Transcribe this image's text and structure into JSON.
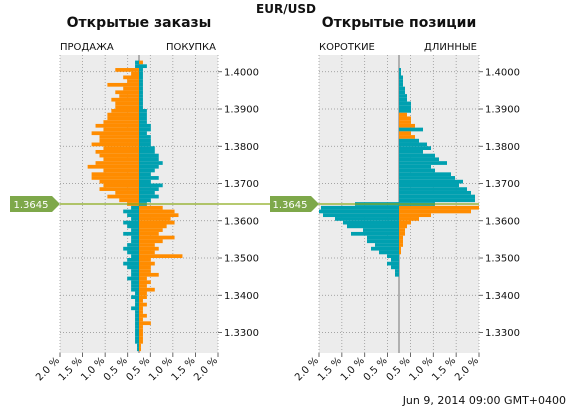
{
  "chart_data": {
    "type": "bar",
    "pair": "EUR/USD",
    "timestamp": "Jun 9, 2014 09:00 GMT+0400",
    "current_price": 1.3645,
    "current_price_label": "1.3645",
    "price_range": [
      1.3245,
      1.4045
    ],
    "price_ticks": [
      "1.4000",
      "1.3900",
      "1.3800",
      "1.3700",
      "1.3600",
      "1.3500",
      "1.3400",
      "1.3300"
    ],
    "x_ticks": [
      "2.0 %",
      "1.5 %",
      "1.0 %",
      "0.5 %",
      "0.5 %",
      "1.0 %",
      "1.5 %",
      "2.0 %"
    ],
    "xlim": [
      -2.0,
      2.0
    ],
    "grid": true,
    "colors": {
      "orange": "#ff8c00",
      "teal": "#00a0b0",
      "price_line": "#8aaa1a",
      "badge": "#7ea84a",
      "panel_bg": "#ececec"
    },
    "price_levels": [
      1.4025,
      1.4015,
      1.4005,
      1.3995,
      1.3985,
      1.3975,
      1.3965,
      1.3955,
      1.3945,
      1.3935,
      1.3925,
      1.3915,
      1.3905,
      1.3895,
      1.3885,
      1.3875,
      1.3865,
      1.3855,
      1.3845,
      1.3835,
      1.3825,
      1.3815,
      1.3805,
      1.3795,
      1.3785,
      1.3775,
      1.3765,
      1.3755,
      1.3745,
      1.3735,
      1.3725,
      1.3715,
      1.3705,
      1.3695,
      1.3685,
      1.3675,
      1.3665,
      1.3655,
      1.3645,
      1.3635,
      1.3625,
      1.3615,
      1.3605,
      1.3595,
      1.3585,
      1.3575,
      1.3565,
      1.3555,
      1.3545,
      1.3535,
      1.3525,
      1.3515,
      1.3505,
      1.3495,
      1.3485,
      1.3475,
      1.3465,
      1.3455,
      1.3445,
      1.3435,
      1.3425,
      1.3415,
      1.3405,
      1.3395,
      1.3385,
      1.3375,
      1.3365,
      1.3355,
      1.3345,
      1.3335,
      1.3325,
      1.3315,
      1.3305,
      1.3295,
      1.3285,
      1.3275,
      1.3265,
      1.3255
    ],
    "panels": [
      {
        "title": "Открытые заказы",
        "left_label": "ПРОДАЖА",
        "right_label": "ПОКУПКА",
        "left_values": [
          0.1,
          0.1,
          0.6,
          0.2,
          0.4,
          0.3,
          0.8,
          0.4,
          0.6,
          0.5,
          0.7,
          0.6,
          0.6,
          0.7,
          0.8,
          0.8,
          0.9,
          1.1,
          0.9,
          1.2,
          1.0,
          1.0,
          1.2,
          0.9,
          1.1,
          1.0,
          0.9,
          1.1,
          1.3,
          0.9,
          1.2,
          1.2,
          1.0,
          0.9,
          1.0,
          0.6,
          0.8,
          0.5,
          0.3,
          0.2,
          0.4,
          0.3,
          0.2,
          0.4,
          0.3,
          0.2,
          0.4,
          0.2,
          0.2,
          0.3,
          0.4,
          0.3,
          0.2,
          0.3,
          0.4,
          0.3,
          0.2,
          0.2,
          0.3,
          0.2,
          0.2,
          0.2,
          0.1,
          0.2,
          0.1,
          0.1,
          0.2,
          0.1,
          0.1,
          0.1,
          0.1,
          0.1,
          0.1,
          0.1,
          0.1,
          0.1,
          0.05,
          0.05
        ],
        "right_values": [
          0.1,
          0.2,
          0.1,
          0.1,
          0.1,
          0.1,
          0.1,
          0.1,
          0.1,
          0.1,
          0.1,
          0.1,
          0.1,
          0.2,
          0.2,
          0.2,
          0.2,
          0.3,
          0.3,
          0.2,
          0.3,
          0.3,
          0.3,
          0.4,
          0.4,
          0.5,
          0.5,
          0.6,
          0.5,
          0.4,
          0.3,
          0.5,
          0.3,
          0.6,
          0.5,
          0.4,
          0.5,
          0.3,
          0.2,
          0.6,
          0.9,
          1.0,
          0.8,
          0.9,
          0.7,
          0.6,
          0.5,
          0.9,
          0.6,
          0.4,
          0.5,
          0.4,
          1.1,
          0.3,
          0.4,
          0.3,
          0.3,
          0.5,
          0.2,
          0.3,
          0.2,
          0.4,
          0.2,
          0.2,
          0.1,
          0.2,
          0.1,
          0.1,
          0.2,
          0.1,
          0.3,
          0.1,
          0.1,
          0.1,
          0.1,
          0.1,
          0.05,
          0.05
        ],
        "left_colors": [
          "t",
          "t",
          "o",
          "o",
          "o",
          "o",
          "o",
          "o",
          "o",
          "o",
          "o",
          "o",
          "o",
          "o",
          "o",
          "o",
          "o",
          "o",
          "o",
          "o",
          "o",
          "o",
          "o",
          "o",
          "o",
          "o",
          "o",
          "o",
          "o",
          "o",
          "o",
          "o",
          "o",
          "o",
          "o",
          "o",
          "o",
          "o",
          "o",
          "t",
          "t",
          "t",
          "t",
          "t",
          "t",
          "t",
          "t",
          "t",
          "t",
          "t",
          "t",
          "t",
          "t",
          "t",
          "t",
          "t",
          "t",
          "t",
          "t",
          "t",
          "t",
          "t",
          "t",
          "t",
          "t",
          "t",
          "t",
          "t",
          "t",
          "t",
          "t",
          "t",
          "t",
          "t",
          "t",
          "t",
          "t",
          "t"
        ],
        "right_colors": [
          "o",
          "t",
          "t",
          "t",
          "t",
          "t",
          "t",
          "t",
          "t",
          "t",
          "t",
          "t",
          "t",
          "t",
          "t",
          "t",
          "t",
          "t",
          "t",
          "t",
          "t",
          "t",
          "t",
          "t",
          "t",
          "t",
          "t",
          "t",
          "t",
          "t",
          "t",
          "t",
          "t",
          "t",
          "t",
          "t",
          "t",
          "t",
          "t",
          "o",
          "o",
          "o",
          "o",
          "o",
          "o",
          "o",
          "o",
          "o",
          "o",
          "o",
          "o",
          "o",
          "o",
          "o",
          "o",
          "o",
          "o",
          "o",
          "o",
          "o",
          "o",
          "o",
          "o",
          "o",
          "o",
          "o",
          "o",
          "o",
          "o",
          "o",
          "o",
          "o",
          "o",
          "o",
          "o",
          "o",
          "o",
          "o"
        ]
      },
      {
        "title": "Открытые позиции",
        "left_label": "КОРОТКИЕ",
        "right_label": "ДЛИННЫЕ",
        "left_values": [
          0.0,
          0.0,
          0.0,
          0.0,
          0.0,
          0.0,
          0.0,
          0.0,
          0.0,
          0.0,
          0.0,
          0.0,
          0.0,
          0.0,
          0.0,
          0.0,
          0.0,
          0.0,
          0.0,
          0.0,
          0.0,
          0.0,
          0.0,
          0.0,
          0.0,
          0.0,
          0.0,
          0.0,
          0.0,
          0.0,
          0.0,
          0.0,
          0.0,
          0.0,
          0.0,
          0.0,
          0.0,
          0.0,
          1.1,
          1.95,
          2.0,
          1.9,
          1.6,
          1.4,
          1.3,
          0.9,
          1.2,
          0.8,
          0.8,
          0.6,
          0.7,
          0.5,
          0.3,
          0.2,
          0.3,
          0.2,
          0.1,
          0.1,
          0.0,
          0.0,
          0.0,
          0.0,
          0.0,
          0.0,
          0.0,
          0.0,
          0.0,
          0.0,
          0.0,
          0.0,
          0.0,
          0.0,
          0.0,
          0.0,
          0.0,
          0.0,
          0.0,
          0.0
        ],
        "right_values": [
          0.0,
          0.0,
          0.05,
          0.05,
          0.1,
          0.1,
          0.1,
          0.15,
          0.15,
          0.2,
          0.2,
          0.3,
          0.3,
          0.3,
          0.2,
          0.3,
          0.3,
          0.4,
          0.6,
          0.3,
          0.4,
          0.5,
          0.7,
          0.8,
          0.6,
          0.9,
          1.0,
          1.2,
          0.8,
          0.9,
          1.3,
          1.4,
          1.6,
          1.5,
          1.7,
          1.8,
          1.9,
          1.9,
          0.9,
          2.0,
          1.8,
          0.8,
          0.5,
          0.3,
          0.2,
          0.15,
          0.15,
          0.1,
          0.1,
          0.1,
          0.05,
          0.05,
          0.0,
          0.0,
          0.0,
          0.0,
          0.0,
          0.0,
          0.0,
          0.0,
          0.0,
          0.0,
          0.0,
          0.0,
          0.0,
          0.0,
          0.0,
          0.0,
          0.0,
          0.0,
          0.0,
          0.0,
          0.0,
          0.0,
          0.0,
          0.0,
          0.0,
          0.0
        ],
        "left_colors": [
          "t",
          "t",
          "t",
          "t",
          "t",
          "t",
          "t",
          "t",
          "t",
          "t",
          "t",
          "t",
          "t",
          "t",
          "t",
          "t",
          "t",
          "t",
          "t",
          "t",
          "t",
          "t",
          "t",
          "t",
          "t",
          "t",
          "t",
          "t",
          "t",
          "t",
          "t",
          "t",
          "t",
          "t",
          "t",
          "t",
          "t",
          "t",
          "t",
          "t",
          "t",
          "t",
          "t",
          "t",
          "t",
          "t",
          "t",
          "t",
          "t",
          "t",
          "t",
          "t",
          "t",
          "t",
          "t",
          "t",
          "t",
          "t",
          "t",
          "t",
          "t",
          "t",
          "t",
          "t",
          "t",
          "t",
          "t",
          "t",
          "t",
          "t",
          "t",
          "t",
          "t",
          "t",
          "t",
          "t",
          "t",
          "t"
        ],
        "right_colors": [
          "t",
          "t",
          "t",
          "t",
          "t",
          "t",
          "t",
          "t",
          "t",
          "t",
          "t",
          "t",
          "t",
          "t",
          "o",
          "o",
          "o",
          "o",
          "t",
          "o",
          "o",
          "t",
          "t",
          "t",
          "t",
          "t",
          "t",
          "t",
          "t",
          "t",
          "t",
          "t",
          "t",
          "t",
          "t",
          "t",
          "t",
          "t",
          "t",
          "o",
          "o",
          "o",
          "o",
          "o",
          "o",
          "o",
          "o",
          "o",
          "o",
          "o",
          "o",
          "o",
          "o",
          "o",
          "o",
          "o",
          "o",
          "o",
          "o",
          "o",
          "o",
          "o",
          "o",
          "o",
          "o",
          "o",
          "o",
          "o",
          "o",
          "o",
          "o",
          "o",
          "o",
          "o",
          "o",
          "o",
          "o",
          "o"
        ]
      }
    ]
  }
}
